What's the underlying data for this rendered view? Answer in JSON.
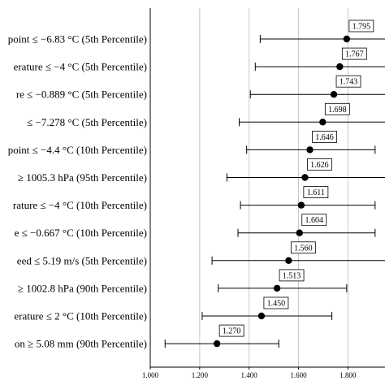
{
  "chart_data": {
    "type": "forest",
    "categories": [
      "point ≤ −6.83 °C (5th Percentile)",
      "erature ≤ −4 °C (5th Percentile)",
      "re ≤ −0.889 °C (5th Percentile)",
      "≤ −7.278 °C (5th Percentile)",
      "point ≤ −4.4 °C (10th Percentile)",
      "≥ 1005.3 hPa (95th Percentile)",
      "rature ≤ −4 °C (10th Percentile)",
      "e ≤ −0.667 °C (10th Percentile)",
      "eed ≤ 5.19 m/s (5th Percentile)",
      "≥ 1002.8 hPa (90th Percentile)",
      "erature ≤ 2 °C (10th Percentile)",
      "on ≥ 5.08 mm (90th Percentile)"
    ],
    "values": [
      1.795,
      1.767,
      1.743,
      1.698,
      1.646,
      1.626,
      1.611,
      1.604,
      1.56,
      1.513,
      1.45,
      1.27
    ],
    "value_labels": [
      "1.795",
      "1.767",
      "1.743",
      "1.698",
      "1.646",
      "1.626",
      "1.611",
      "1.604",
      "1.560",
      "1.513",
      "1.450",
      "1.270"
    ],
    "lower": [
      1.445,
      1.425,
      1.405,
      1.36,
      1.39,
      1.31,
      1.365,
      1.355,
      1.25,
      1.275,
      1.21,
      1.06
    ],
    "upper": [
      2.3,
      2.3,
      2.3,
      2.3,
      1.91,
      2.3,
      1.91,
      1.91,
      2.3,
      1.795,
      1.735,
      1.52
    ],
    "x_ticks": [
      "1.000",
      "1.200",
      "1.400",
      "1.600",
      "1.800"
    ],
    "xlim": [
      1.0,
      1.95
    ],
    "grid": true,
    "point_color": "#000000",
    "grid_color": "#c8c8c8"
  }
}
